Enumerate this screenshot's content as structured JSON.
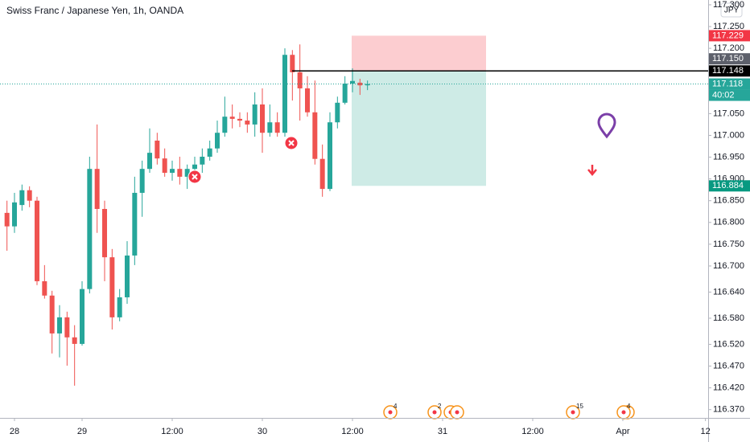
{
  "chart_data": {
    "type": "candlestick",
    "title": "Swiss Franc / Japanese Yen, 1h, OANDA",
    "currency": "JPY",
    "up_color": "#26a69a",
    "down_color": "#ef5350",
    "x": [
      -1,
      0,
      1,
      2,
      3,
      4,
      5,
      6,
      7,
      8,
      9,
      10,
      11,
      12,
      13,
      14,
      15,
      16,
      17,
      18,
      19,
      20,
      21,
      22,
      23,
      24,
      25,
      26,
      27,
      28,
      29,
      30,
      31,
      32,
      33,
      34,
      35,
      36,
      37,
      38,
      39,
      40,
      41,
      42,
      43,
      44,
      45,
      46,
      47
    ],
    "open": [
      116.822,
      116.791,
      116.84,
      116.874,
      116.85,
      116.665,
      116.632,
      116.545,
      116.582,
      116.536,
      116.521,
      116.647,
      116.923,
      116.831,
      116.72,
      116.582,
      116.628,
      116.724,
      116.868,
      116.923,
      116.988,
      116.947,
      116.914,
      116.923,
      116.905,
      116.923,
      116.933,
      116.951,
      116.97,
      117.006,
      117.043,
      117.038,
      117.034,
      117.025,
      117.071,
      117.006,
      117.03,
      117.006,
      117.185,
      117.145,
      117.108,
      117.053,
      116.946,
      116.877,
      117.03,
      117.075,
      117.119,
      117.121,
      117.115
    ],
    "high": [
      116.85,
      116.868,
      116.887,
      116.883,
      116.859,
      116.702,
      116.643,
      116.61,
      116.595,
      116.564,
      116.665,
      116.951,
      117.025,
      116.85,
      116.739,
      116.647,
      116.757,
      116.905,
      116.942,
      117.016,
      117.006,
      116.97,
      116.942,
      116.951,
      116.933,
      116.951,
      116.97,
      116.988,
      117.034,
      117.089,
      117.071,
      117.053,
      117.053,
      117.099,
      117.108,
      117.071,
      117.053,
      117.2,
      117.196,
      117.209,
      117.136,
      117.126,
      116.979,
      117.053,
      117.089,
      117.136,
      117.154,
      117.13,
      117.126
    ],
    "low": [
      116.735,
      116.776,
      116.827,
      116.835,
      116.656,
      116.625,
      116.499,
      116.49,
      116.471,
      116.425,
      116.517,
      116.637,
      116.776,
      116.665,
      116.554,
      116.573,
      116.613,
      116.702,
      116.813,
      116.914,
      116.933,
      116.905,
      116.896,
      116.887,
      116.877,
      116.914,
      116.914,
      116.942,
      116.96,
      116.997,
      117.016,
      117.019,
      117.006,
      116.997,
      116.96,
      116.997,
      116.997,
      116.997,
      117.08,
      117.034,
      117.043,
      116.933,
      116.859,
      116.872,
      117.016,
      117.071,
      117.099,
      117.093,
      117.104
    ],
    "close": [
      116.791,
      116.846,
      116.874,
      116.85,
      116.665,
      116.632,
      116.545,
      116.582,
      116.536,
      116.521,
      116.647,
      116.923,
      116.831,
      116.72,
      116.582,
      116.628,
      116.724,
      116.868,
      116.923,
      116.96,
      116.947,
      116.914,
      116.923,
      116.905,
      116.923,
      116.933,
      116.951,
      116.97,
      117.006,
      117.043,
      117.038,
      117.034,
      117.025,
      117.071,
      117.006,
      117.03,
      117.006,
      117.185,
      117.145,
      117.108,
      117.053,
      116.946,
      116.877,
      117.03,
      117.075,
      117.119,
      117.125,
      117.115,
      117.118
    ],
    "xlim": [
      -1.93,
      92.36
    ],
    "xticks": [
      {
        "value": 0,
        "label": "28"
      },
      {
        "value": 9,
        "label": "29"
      },
      {
        "value": 21,
        "label": "12:00"
      },
      {
        "value": 33,
        "label": "30"
      },
      {
        "value": 45,
        "label": "12:00"
      },
      {
        "value": 57,
        "label": "31"
      },
      {
        "value": 69,
        "label": "12:00"
      },
      {
        "value": 81,
        "label": "Apr"
      },
      {
        "value": 92,
        "label": "12"
      }
    ],
    "ylim": [
      116.351,
      117.311
    ],
    "yticks": [
      {
        "value": 117.3,
        "label": "117.300"
      },
      {
        "value": 117.25,
        "label": "117.250"
      },
      {
        "value": 117.2,
        "label": "117.200"
      },
      {
        "value": 117.05,
        "label": "117.050"
      },
      {
        "value": 117,
        "label": "117.000"
      },
      {
        "value": 116.95,
        "label": "116.950"
      },
      {
        "value": 116.9,
        "label": "116.900"
      },
      {
        "value": 116.85,
        "label": "116.850"
      },
      {
        "value": 116.8,
        "label": "116.800"
      },
      {
        "value": 116.75,
        "label": "116.750"
      },
      {
        "value": 116.7,
        "label": "116.700"
      },
      {
        "value": 116.64,
        "label": "116.640"
      },
      {
        "value": 116.58,
        "label": "116.580"
      },
      {
        "value": 116.52,
        "label": "116.520"
      },
      {
        "value": 116.47,
        "label": "116.470"
      },
      {
        "value": 116.42,
        "label": "116.420"
      },
      {
        "value": 116.37,
        "label": "116.370"
      }
    ],
    "price_labels": [
      {
        "value": 117.229,
        "color": "#f23645"
      },
      {
        "value": 117.15,
        "label": "117.150",
        "color": "#5d606b"
      },
      {
        "value": 117.148,
        "color": "#000000"
      },
      {
        "value": 117.118,
        "color": "#26a69a",
        "countdown": "40:02"
      },
      {
        "value": 116.884,
        "color": "#089981"
      }
    ],
    "events": [
      {
        "label": "4"
      },
      {
        "label": "2"
      },
      {
        "label": "15"
      },
      {
        "label": "4"
      }
    ]
  }
}
